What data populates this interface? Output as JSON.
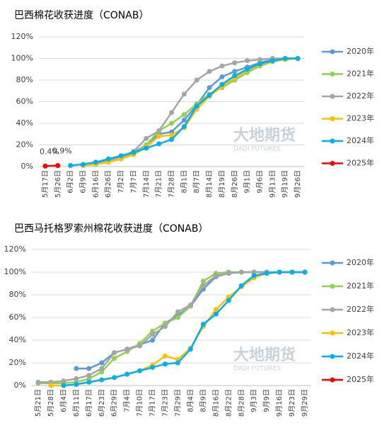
{
  "chart_data": [
    {
      "type": "line",
      "title": "巴西棉花收获进度（CONAB）",
      "categories": [
        "5月17日",
        "5月26日",
        "6月2日",
        "6月9日",
        "6月16日",
        "6月26日",
        "7月2日",
        "7月7日",
        "7月14日",
        "7月21日",
        "7月28日",
        "8月1日",
        "8月7日",
        "8月14日",
        "8月19日",
        "8月26日",
        "9月1日",
        "9月6日",
        "9月13日",
        "9月19日",
        "9月26日"
      ],
      "ylim": [
        0,
        120
      ],
      "yticks": [
        {
          "value": 0,
          "label": "0%"
        },
        {
          "value": 20,
          "label": "20%"
        },
        {
          "value": 40,
          "label": "40%"
        },
        {
          "value": 60,
          "label": "60%"
        },
        {
          "value": 80,
          "label": "80%"
        },
        {
          "value": 100,
          "label": "100%"
        },
        {
          "value": 120,
          "label": "120%"
        }
      ],
      "legend": "right",
      "series": [
        {
          "name": "2020年",
          "color": "#5b9bd5",
          "values": [
            null,
            null,
            null,
            1,
            3,
            6,
            9,
            13,
            20,
            30,
            32,
            43,
            57,
            73,
            83,
            88,
            92,
            96,
            99,
            100,
            100
          ]
        },
        {
          "name": "2021年",
          "color": "#92d050",
          "values": [
            null,
            null,
            null,
            null,
            2,
            5,
            8,
            12,
            20,
            33,
            40,
            48,
            58,
            67,
            73,
            80,
            87,
            93,
            97,
            99,
            100
          ]
        },
        {
          "name": "2022年",
          "color": "#a5a5a5",
          "values": [
            null,
            null,
            null,
            1,
            2,
            5,
            9,
            14,
            26,
            33,
            50,
            67,
            80,
            88,
            93,
            96,
            98,
            99,
            100,
            100,
            100
          ]
        },
        {
          "name": "2023年",
          "color": "#ffc000",
          "values": [
            null,
            null,
            null,
            1,
            2,
            4,
            7,
            11,
            18,
            28,
            29,
            36,
            53,
            65,
            74,
            82,
            89,
            94,
            98,
            99,
            100
          ]
        },
        {
          "name": "2024年",
          "color": "#00b0f0",
          "values": [
            null,
            null,
            1,
            2,
            4,
            7,
            10,
            13,
            17,
            21,
            25,
            37,
            56,
            66,
            76,
            84,
            90,
            95,
            98,
            100,
            100
          ]
        },
        {
          "name": "2025年",
          "color": "#ff0000",
          "values": [
            0.4,
            0.9,
            null,
            null,
            null,
            null,
            null,
            null,
            null,
            null,
            null,
            null,
            null,
            null,
            null,
            null,
            null,
            null,
            null,
            null,
            null
          ],
          "value_labels": [
            "0.4%",
            "0.9%",
            null,
            null,
            null,
            null,
            null,
            null,
            null,
            null,
            null,
            null,
            null,
            null,
            null,
            null,
            null,
            null,
            null,
            null,
            null
          ]
        }
      ]
    },
    {
      "type": "line",
      "title": "巴西马托格罗索州棉花收获进度（CONAB）",
      "categories": [
        "5月21日",
        "5月28日",
        "6月4日",
        "6月11日",
        "6月17日",
        "6月23日",
        "6月29日",
        "7月4日",
        "7月10日",
        "7月17日",
        "7月23日",
        "7月29日",
        "8月4日",
        "8月9日",
        "8月16日",
        "8月22日",
        "8月28日",
        "9月3日",
        "9月9日",
        "9月16日",
        "9月23日",
        "9月29日"
      ],
      "ylim": [
        0,
        120
      ],
      "yticks": [
        {
          "value": 0,
          "label": "0%"
        },
        {
          "value": 20,
          "label": "20%"
        },
        {
          "value": 40,
          "label": "40%"
        },
        {
          "value": 60,
          "label": "60%"
        },
        {
          "value": 80,
          "label": "80%"
        },
        {
          "value": 100,
          "label": "100%"
        },
        {
          "value": 120,
          "label": "120%"
        }
      ],
      "legend": "right",
      "series": [
        {
          "name": "2020年",
          "color": "#5b9bd5",
          "values": [
            null,
            null,
            null,
            15,
            15,
            20,
            29,
            32,
            36,
            40,
            55,
            62,
            70,
            85,
            96,
            99,
            100,
            100,
            100,
            100,
            100,
            100
          ]
        },
        {
          "name": "2021年",
          "color": "#92d050",
          "values": [
            2,
            2,
            2,
            3,
            6,
            12,
            24,
            30,
            37,
            48,
            55,
            60,
            70,
            92,
            99,
            100,
            100,
            100,
            100,
            100,
            100,
            100
          ]
        },
        {
          "name": "2022年",
          "color": "#a5a5a5",
          "values": [
            3,
            3,
            4,
            6,
            9,
            15,
            29,
            32,
            35,
            45,
            52,
            65,
            71,
            88,
            97,
            99,
            100,
            100,
            100,
            100,
            100,
            100
          ]
        },
        {
          "name": "2023年",
          "color": "#ffc000",
          "values": [
            null,
            0,
            0,
            1,
            3,
            5,
            7,
            10,
            13,
            18,
            26,
            23,
            33,
            52,
            67,
            78,
            87,
            95,
            99,
            100,
            100,
            100
          ]
        },
        {
          "name": "2024年",
          "color": "#00b0f0",
          "values": [
            null,
            null,
            0,
            1,
            3,
            5,
            7,
            10,
            13,
            16,
            19,
            20,
            32,
            54,
            63,
            75,
            88,
            97,
            99,
            100,
            100,
            100
          ]
        },
        {
          "name": "2025年",
          "color": "#ff0000",
          "values": [
            null,
            null,
            null,
            null,
            null,
            null,
            null,
            null,
            null,
            null,
            null,
            null,
            null,
            null,
            null,
            null,
            null,
            null,
            null,
            null,
            null,
            null
          ]
        }
      ]
    }
  ],
  "watermark": {
    "cn": "大地期货",
    "en": "DADI FUTURES"
  }
}
